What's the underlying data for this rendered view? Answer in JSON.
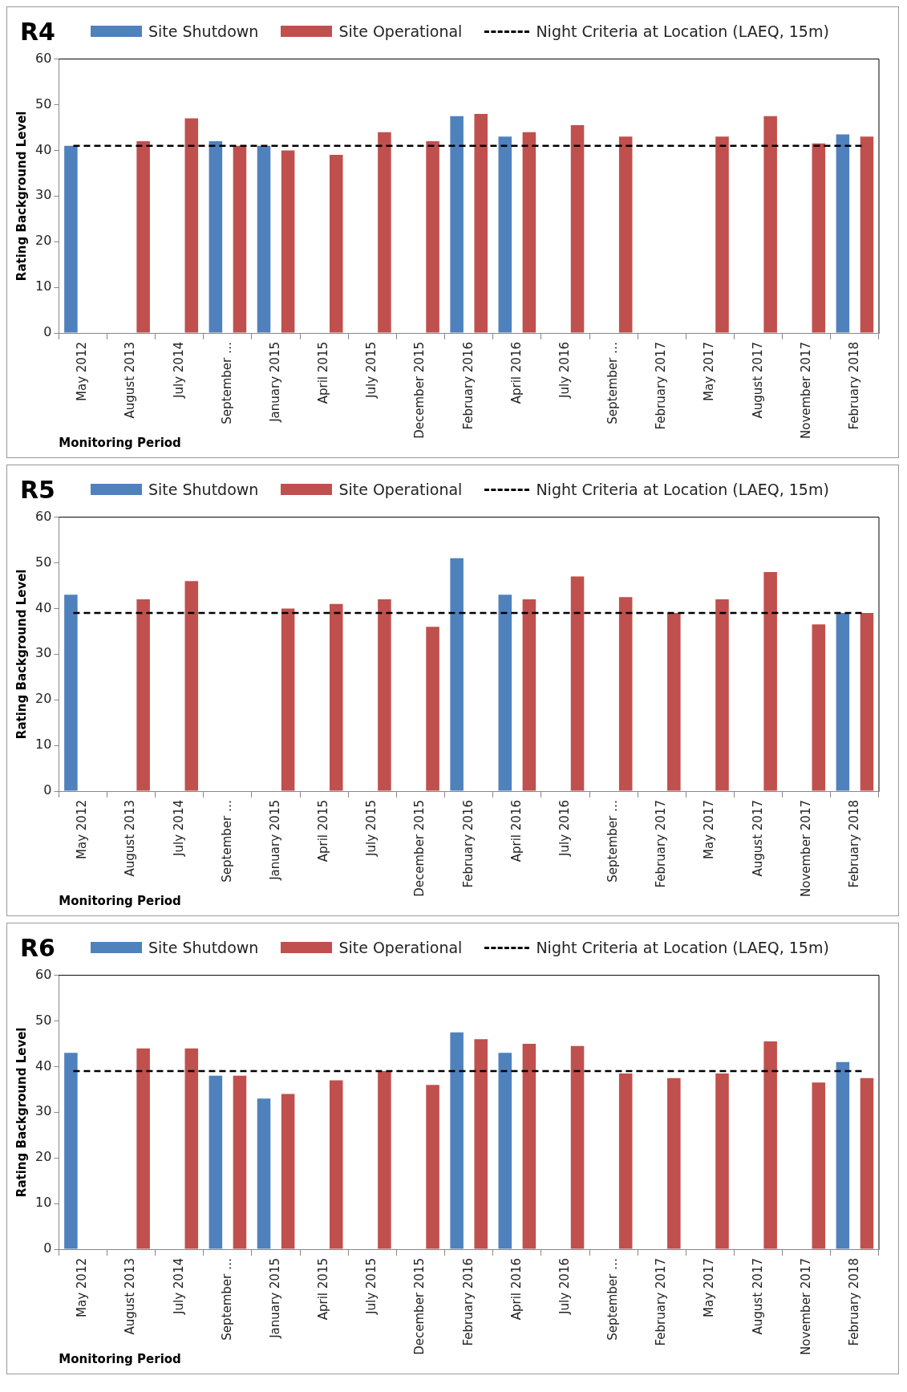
{
  "chart_data": [
    {
      "type": "bar",
      "title": "R4",
      "xlabel": "Monitoring Period",
      "ylabel": "Rating Background Level",
      "categories": [
        "May 2012",
        "August 2013",
        "July 2014",
        "September …",
        "January 2015",
        "April 2015",
        "July 2015",
        "December 2015",
        "February 2016",
        "April 2016",
        "July 2016",
        "September …",
        "February 2017",
        "May 2017",
        "August 2017",
        "November 2017",
        "February 2018"
      ],
      "series": [
        {
          "name": "Site Shutdown",
          "color": "#4f81bd",
          "values": [
            41,
            null,
            null,
            42,
            41,
            null,
            null,
            null,
            47.5,
            43,
            null,
            null,
            null,
            null,
            null,
            null,
            43.5
          ]
        },
        {
          "name": "Site Operational",
          "color": "#c0504d",
          "values": [
            null,
            42,
            47,
            41,
            40,
            39,
            44,
            42,
            48,
            44,
            45.5,
            43,
            null,
            43,
            47.5,
            41.5,
            43
          ]
        }
      ],
      "ref_lines": [
        {
          "axis": "y",
          "value": 41,
          "label": "Night Criteria at Location (LAEQ, 15m)",
          "color": "#000000",
          "line_style": "dashed"
        }
      ],
      "ylim": [
        0,
        60
      ],
      "yticks": [
        0,
        10,
        20,
        30,
        40,
        50,
        60
      ],
      "grid": false,
      "legend": "top"
    },
    {
      "type": "bar",
      "title": "R5",
      "xlabel": "Monitoring Period",
      "ylabel": "Rating Background Level",
      "categories": [
        "May 2012",
        "August 2013",
        "July 2014",
        "September …",
        "January 2015",
        "April 2015",
        "July 2015",
        "December 2015",
        "February 2016",
        "April 2016",
        "July 2016",
        "September …",
        "February 2017",
        "May 2017",
        "August 2017",
        "November 2017",
        "February 2018"
      ],
      "series": [
        {
          "name": "Site Shutdown",
          "color": "#4f81bd",
          "values": [
            43,
            null,
            null,
            null,
            null,
            null,
            null,
            null,
            51,
            43,
            null,
            null,
            null,
            null,
            null,
            null,
            39
          ]
        },
        {
          "name": "Site Operational",
          "color": "#c0504d",
          "values": [
            null,
            42,
            46,
            null,
            40,
            41,
            42,
            36,
            null,
            42,
            47,
            42.5,
            39,
            42,
            48,
            36.5,
            39
          ]
        }
      ],
      "ref_lines": [
        {
          "axis": "y",
          "value": 39,
          "label": "Night Criteria at Location (LAEQ, 15m)",
          "color": "#000000",
          "line_style": "dashed"
        }
      ],
      "ylim": [
        0,
        60
      ],
      "yticks": [
        0,
        10,
        20,
        30,
        40,
        50,
        60
      ],
      "grid": false,
      "legend": "top"
    },
    {
      "type": "bar",
      "title": "R6",
      "xlabel": "Monitoring Period",
      "ylabel": "Rating Background Level",
      "categories": [
        "May 2012",
        "August 2013",
        "July 2014",
        "September …",
        "January 2015",
        "April 2015",
        "July 2015",
        "December 2015",
        "February 2016",
        "April 2016",
        "July 2016",
        "September …",
        "February 2017",
        "May 2017",
        "August 2017",
        "November 2017",
        "February 2018"
      ],
      "series": [
        {
          "name": "Site Shutdown",
          "color": "#4f81bd",
          "values": [
            43,
            null,
            null,
            38,
            33,
            null,
            null,
            null,
            47.5,
            43,
            null,
            null,
            null,
            null,
            null,
            null,
            41
          ]
        },
        {
          "name": "Site Operational",
          "color": "#c0504d",
          "values": [
            null,
            44,
            44,
            38,
            34,
            37,
            39,
            36,
            46,
            45,
            44.5,
            38.5,
            37.5,
            38.5,
            45.5,
            36.5,
            37.5
          ]
        }
      ],
      "ref_lines": [
        {
          "axis": "y",
          "value": 39,
          "label": "Night Criteria at Location (LAEQ, 15m)",
          "color": "#000000",
          "line_style": "dashed"
        }
      ],
      "ylim": [
        0,
        60
      ],
      "yticks": [
        0,
        10,
        20,
        30,
        40,
        50,
        60
      ],
      "grid": false,
      "legend": "top"
    }
  ]
}
